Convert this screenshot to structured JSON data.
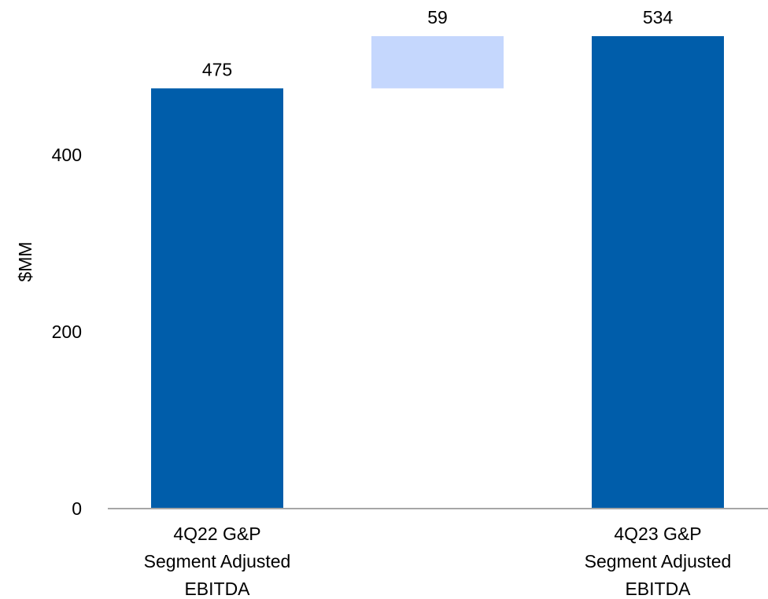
{
  "chart_data": {
    "type": "bar",
    "subtype": "waterfall",
    "ylabel": "$MM",
    "ylim": [
      0,
      534
    ],
    "yticks": [
      0,
      200,
      400
    ],
    "grid": false,
    "bars": [
      {
        "category_lines": [
          "4Q22 G&P",
          "Segment Adjusted",
          "EBITDA"
        ],
        "kind": "total",
        "start": 0,
        "end": 475,
        "label": "475",
        "color": "#005DAA"
      },
      {
        "category_lines": [],
        "kind": "increase",
        "start": 475,
        "end": 534,
        "label": "59",
        "color": "#C5D7FD"
      },
      {
        "category_lines": [
          "4Q23 G&P",
          "Segment Adjusted",
          "EBITDA"
        ],
        "kind": "total",
        "start": 0,
        "end": 534,
        "label": "534",
        "color": "#005DAA"
      }
    ],
    "axis_color": "#A6A6A6"
  }
}
